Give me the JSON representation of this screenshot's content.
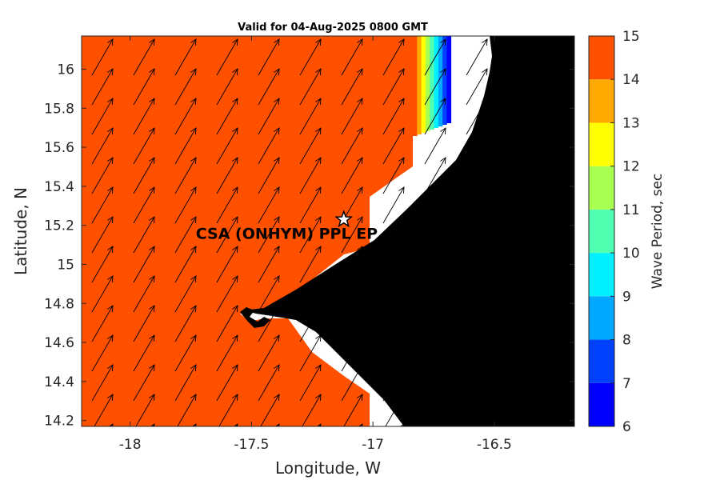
{
  "chart_data": {
    "type": "heatmap",
    "title": "Valid for 04-Aug-2025 0800 GMT",
    "xlabel": "Longitude, W",
    "ylabel": "Latitude, N",
    "xlim": [
      -18.2,
      -16.17
    ],
    "ylim": [
      14.17,
      16.17
    ],
    "x_ticks": [
      -18,
      -17.5,
      -17,
      -16.5
    ],
    "x_tick_labels": [
      "-18",
      "-17.5",
      "-17",
      "-16.5"
    ],
    "y_ticks": [
      14.2,
      14.4,
      14.6,
      14.8,
      15,
      15.2,
      15.4,
      15.6,
      15.8,
      16
    ],
    "y_tick_labels": [
      "14.2",
      "14.4",
      "14.6",
      "14.8",
      "15",
      "15.2",
      "15.4",
      "15.6",
      "15.8",
      "16"
    ],
    "colorbar": {
      "label": "Wave Period, sec",
      "min": 6,
      "max": 15,
      "ticks": [
        6,
        7,
        8,
        9,
        10,
        11,
        12,
        13,
        14,
        15
      ],
      "tick_labels": [
        "6",
        "7",
        "8",
        "9",
        "10",
        "11",
        "12",
        "13",
        "14",
        "15"
      ],
      "bands": [
        {
          "range": [
            6,
            7
          ],
          "color": "#0000ff"
        },
        {
          "range": [
            7,
            8
          ],
          "color": "#0040ff"
        },
        {
          "range": [
            8,
            9
          ],
          "color": "#00a8ff"
        },
        {
          "range": [
            9,
            10
          ],
          "color": "#00f0ff"
        },
        {
          "range": [
            10,
            11
          ],
          "color": "#50ffb0"
        },
        {
          "range": [
            11,
            12
          ],
          "color": "#a8ff50"
        },
        {
          "range": [
            12,
            13
          ],
          "color": "#ffff00"
        },
        {
          "range": [
            13,
            14
          ],
          "color": "#ffa800"
        },
        {
          "range": [
            14,
            15
          ],
          "color": "#ff5000"
        }
      ]
    },
    "dominant_period": 14.5,
    "wave_direction": "from south-west",
    "site": {
      "label": "CSA (ONHYM) PPL EP",
      "lon": -17.12,
      "lat": 15.23,
      "marker": "star"
    },
    "grid": false,
    "colors": {
      "sea": "#ff5000",
      "land": "#000000",
      "coast_gap": "#ffffff",
      "arrow": "#000000"
    }
  }
}
